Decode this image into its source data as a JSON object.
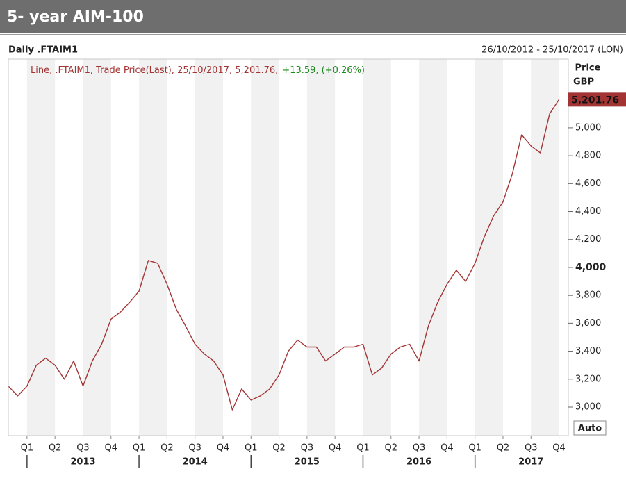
{
  "chart_data": {
    "type": "line",
    "title": "5- year AIM-100",
    "instrument": "Daily .FTAIM1",
    "date_range": "26/10/2012 - 25/10/2017 (LON)",
    "legend_text": "Line, .FTAIM1, Trade Price(Last), 25/10/2017, 5,201.76,",
    "legend_change": "+13.59, (+0.26%)",
    "axis_title": "Price",
    "currency": "GBP",
    "price_label": "5,201.76",
    "scale_button": "Auto",
    "series": [
      {
        "name": ".FTAIM1",
        "color": "#a33434",
        "x": [
          "2012-11",
          "2012-12",
          "2013-01",
          "2013-02",
          "2013-03",
          "2013-04",
          "2013-05",
          "2013-06",
          "2013-07",
          "2013-08",
          "2013-09",
          "2013-10",
          "2013-11",
          "2013-12",
          "2014-01",
          "2014-02",
          "2014-03",
          "2014-04",
          "2014-05",
          "2014-06",
          "2014-07",
          "2014-08",
          "2014-09",
          "2014-10",
          "2014-11",
          "2014-12",
          "2015-01",
          "2015-02",
          "2015-03",
          "2015-04",
          "2015-05",
          "2015-06",
          "2015-07",
          "2015-08",
          "2015-09",
          "2015-10",
          "2015-11",
          "2015-12",
          "2016-01",
          "2016-02",
          "2016-03",
          "2016-04",
          "2016-05",
          "2016-06",
          "2016-07",
          "2016-08",
          "2016-09",
          "2016-10",
          "2016-11",
          "2016-12",
          "2017-01",
          "2017-02",
          "2017-03",
          "2017-04",
          "2017-05",
          "2017-06",
          "2017-07",
          "2017-08",
          "2017-09",
          "2017-10"
        ],
        "values": [
          3150,
          3080,
          3150,
          3300,
          3350,
          3300,
          3200,
          3330,
          3150,
          3330,
          3450,
          3630,
          3680,
          3750,
          3830,
          4050,
          4030,
          3880,
          3700,
          3580,
          3450,
          3380,
          3330,
          3230,
          2980,
          3130,
          3050,
          3080,
          3130,
          3230,
          3400,
          3480,
          3430,
          3430,
          3330,
          3380,
          3430,
          3430,
          3450,
          3230,
          3280,
          3380,
          3430,
          3450,
          3330,
          3580,
          3750,
          3880,
          3980,
          3900,
          4030,
          4220,
          4370,
          4470,
          4670,
          4950,
          4870,
          4820,
          5100,
          5201.76
        ]
      }
    ],
    "xlim": [
      "2012-11",
      "2017-11"
    ],
    "xticks": [
      {
        "value": "2013-01",
        "label": "Q1"
      },
      {
        "value": "2013-04",
        "label": "Q2"
      },
      {
        "value": "2013-07",
        "label": "Q3"
      },
      {
        "value": "2013-10",
        "label": "Q4"
      },
      {
        "value": "2014-01",
        "label": "Q1"
      },
      {
        "value": "2014-04",
        "label": "Q2"
      },
      {
        "value": "2014-07",
        "label": "Q3"
      },
      {
        "value": "2014-10",
        "label": "Q4"
      },
      {
        "value": "2015-01",
        "label": "Q1"
      },
      {
        "value": "2015-04",
        "label": "Q2"
      },
      {
        "value": "2015-07",
        "label": "Q3"
      },
      {
        "value": "2015-10",
        "label": "Q4"
      },
      {
        "value": "2016-01",
        "label": "Q1"
      },
      {
        "value": "2016-04",
        "label": "Q2"
      },
      {
        "value": "2016-07",
        "label": "Q3"
      },
      {
        "value": "2016-10",
        "label": "Q4"
      },
      {
        "value": "2017-01",
        "label": "Q1"
      },
      {
        "value": "2017-04",
        "label": "Q2"
      },
      {
        "value": "2017-07",
        "label": "Q3"
      },
      {
        "value": "2017-10",
        "label": "Q4"
      }
    ],
    "year_ticks": [
      {
        "value": "2013-01",
        "label": "2013"
      },
      {
        "value": "2014-01",
        "label": "2014"
      },
      {
        "value": "2015-01",
        "label": "2015"
      },
      {
        "value": "2016-01",
        "label": "2016"
      },
      {
        "value": "2017-01",
        "label": "2017"
      }
    ],
    "ylim": [
      2796,
      5492
    ],
    "yticks": [
      {
        "value": 3000,
        "label": "3,000"
      },
      {
        "value": 3200,
        "label": "3,200"
      },
      {
        "value": 3400,
        "label": "3,400"
      },
      {
        "value": 3600,
        "label": "3,600"
      },
      {
        "value": 3800,
        "label": "3,800"
      },
      {
        "value": 4000,
        "label": "4,000"
      },
      {
        "value": 4200,
        "label": "4,200"
      },
      {
        "value": 4400,
        "label": "4,400"
      },
      {
        "value": 4600,
        "label": "4,600"
      },
      {
        "value": 4800,
        "label": "4,800"
      },
      {
        "value": 5000,
        "label": "5,000"
      }
    ],
    "bold_ytick": 4000,
    "quarter_shading": true
  }
}
